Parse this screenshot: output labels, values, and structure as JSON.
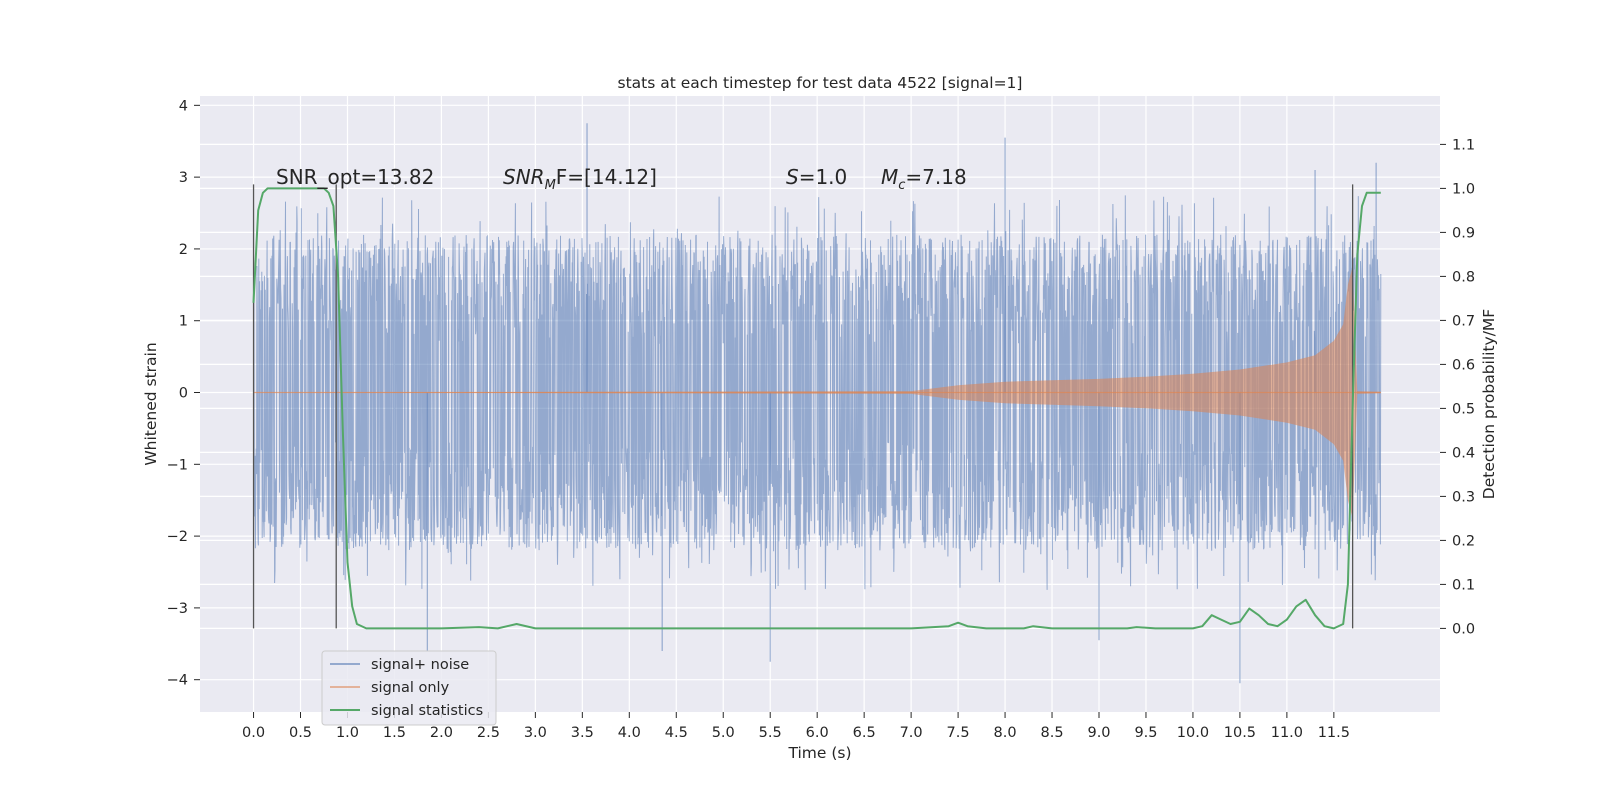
{
  "chart_data": {
    "type": "line",
    "title": "stats at each timestep for test data 4522 [signal=1]",
    "xlabel": "Time (s)",
    "ylabel_left": "Whitened strain",
    "ylabel_right": "Detection probability/MF",
    "xlim": [
      -0.57,
      12.63
    ],
    "ylim_left": [
      -4.45,
      4.13
    ],
    "ylim_right": [
      -0.19,
      1.21
    ],
    "x_ticks": [
      "0.0",
      "0.5",
      "1.0",
      "1.5",
      "2.0",
      "2.5",
      "3.0",
      "3.5",
      "4.0",
      "4.5",
      "5.0",
      "5.5",
      "6.0",
      "6.5",
      "7.0",
      "7.5",
      "8.0",
      "8.5",
      "9.0",
      "9.5",
      "10.0",
      "10.5",
      "11.0",
      "11.5"
    ],
    "y_ticks_left": [
      "4",
      "3",
      "2",
      "1",
      "0",
      "−1",
      "−2",
      "−3",
      "−4"
    ],
    "y_ticks_right": [
      "1.1",
      "1.0",
      "0.9",
      "0.8",
      "0.7",
      "0.6",
      "0.5",
      "0.4",
      "0.3",
      "0.2",
      "0.1",
      "0.0"
    ],
    "grid": true,
    "legend_position": "lower-left",
    "annotations": {
      "snr_opt": "SNR_opt=13.82",
      "snr_mf_base": "SNR",
      "snr_mf_sub": "M",
      "snr_mf_rest": "F=[14.12]",
      "s_var": "S",
      "s_val": "=1.0",
      "mc_var": "M",
      "mc_sub": "c",
      "mc_val": "=7.18"
    },
    "vlines_x": [
      0.0,
      0.88,
      11.7
    ],
    "series": [
      {
        "name": "signal+ noise",
        "color": "#4c72b0",
        "axis": "left",
        "x_range": [
          0.0,
          12.0
        ],
        "envelope": {
          "typical_max": 2.2,
          "typical_min": -2.2,
          "peaks": [
            {
              "x": 3.55,
              "y": 3.75
            },
            {
              "x": 1.85,
              "y": -3.6
            },
            {
              "x": 10.5,
              "y": -4.05
            },
            {
              "x": 5.5,
              "y": -3.75
            },
            {
              "x": 4.35,
              "y": -3.6
            },
            {
              "x": 9.0,
              "y": -3.45
            },
            {
              "x": 8.0,
              "y": 3.55
            },
            {
              "x": 11.3,
              "y": 3.1
            },
            {
              "x": 11.95,
              "y": 3.2
            }
          ]
        }
      },
      {
        "name": "signal only",
        "color": "#dd8452",
        "axis": "left",
        "x": [
          0,
          7.0,
          7.5,
          8.0,
          8.5,
          9.0,
          9.5,
          10.0,
          10.5,
          11.0,
          11.3,
          11.5,
          11.6,
          11.65,
          11.7,
          11.75,
          12.0
        ],
        "amplitude": [
          0,
          0.02,
          0.1,
          0.15,
          0.17,
          0.19,
          0.22,
          0.26,
          0.32,
          0.42,
          0.52,
          0.72,
          0.95,
          1.5,
          1.75,
          0.02,
          0.01
        ]
      },
      {
        "name": "signal statistics",
        "color": "#55a868",
        "axis": "right",
        "x": [
          0.0,
          0.05,
          0.1,
          0.15,
          0.25,
          0.4,
          0.6,
          0.75,
          0.8,
          0.85,
          0.9,
          0.95,
          1.0,
          1.05,
          1.1,
          1.2,
          2.0,
          2.4,
          2.6,
          2.8,
          3.0,
          4.0,
          5.0,
          5.2,
          6.0,
          7.0,
          7.4,
          7.5,
          7.6,
          7.8,
          8.2,
          8.3,
          8.5,
          9.0,
          9.3,
          9.4,
          9.6,
          10.0,
          10.1,
          10.2,
          10.3,
          10.4,
          10.5,
          10.6,
          10.7,
          10.8,
          10.9,
          11.0,
          11.1,
          11.2,
          11.3,
          11.4,
          11.5,
          11.6,
          11.65,
          11.7,
          11.75,
          11.8,
          11.85,
          11.9,
          11.95,
          12.0
        ],
        "y": [
          0.74,
          0.95,
          0.99,
          1.0,
          1.0,
          1.0,
          1.0,
          1.0,
          0.99,
          0.96,
          0.8,
          0.45,
          0.15,
          0.05,
          0.01,
          0.0,
          0.0,
          0.003,
          0.0,
          0.01,
          0.0,
          0.0,
          0.0,
          0.0,
          0.0,
          0.0,
          0.005,
          0.013,
          0.005,
          0.0,
          0.0,
          0.005,
          0.0,
          0.0,
          0.0,
          0.003,
          0.0,
          0.0,
          0.005,
          0.03,
          0.02,
          0.01,
          0.015,
          0.045,
          0.03,
          0.01,
          0.005,
          0.02,
          0.05,
          0.065,
          0.03,
          0.005,
          0.0,
          0.01,
          0.1,
          0.5,
          0.85,
          0.96,
          0.99,
          0.99,
          0.99,
          0.99
        ]
      }
    ]
  }
}
